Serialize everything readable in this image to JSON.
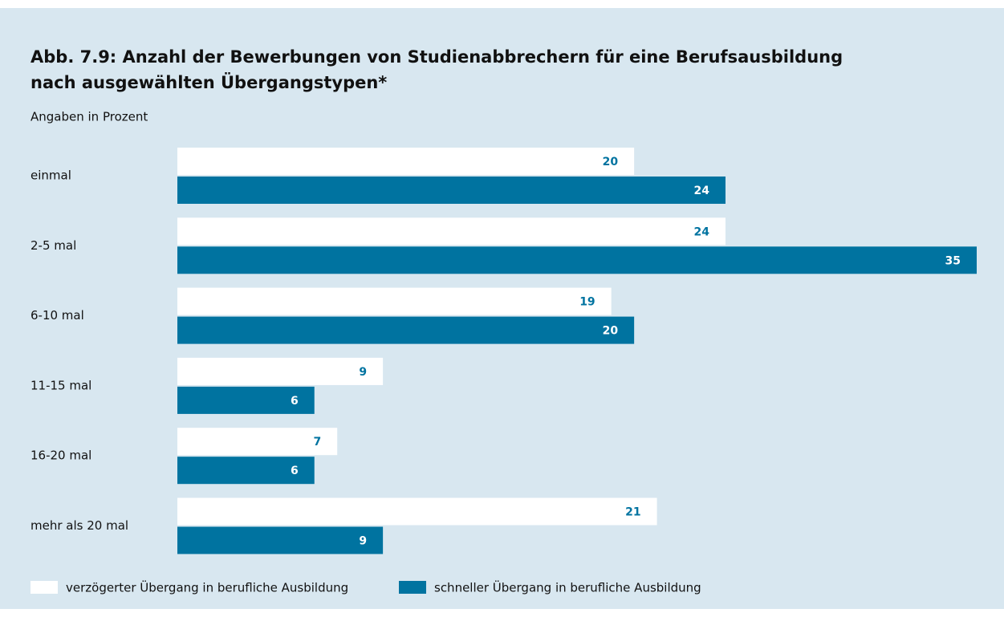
{
  "chart_data": {
    "type": "bar",
    "orientation": "horizontal",
    "title": [
      "Abb. 7.9: Anzahl der Bewerbungen von Studienabbrechern für eine Berufsausbildung",
      "nach ausgewählten Übergangstypen*"
    ],
    "subtitle": "Angaben in Prozent",
    "categories": [
      "einmal",
      "2-5 mal",
      "6-10 mal",
      "11-15 mal",
      "16-20 mal",
      "mehr als 20 mal"
    ],
    "series": [
      {
        "name": "verzögerter Übergang in berufliche Ausbildung",
        "color": "#ffffff",
        "values": [
          20,
          24,
          19,
          9,
          7,
          21
        ]
      },
      {
        "name": "schneller Übergang in berufliche Ausbildung",
        "color": "#0073a0",
        "values": [
          24,
          35,
          20,
          6,
          6,
          9
        ]
      }
    ]
  }
}
